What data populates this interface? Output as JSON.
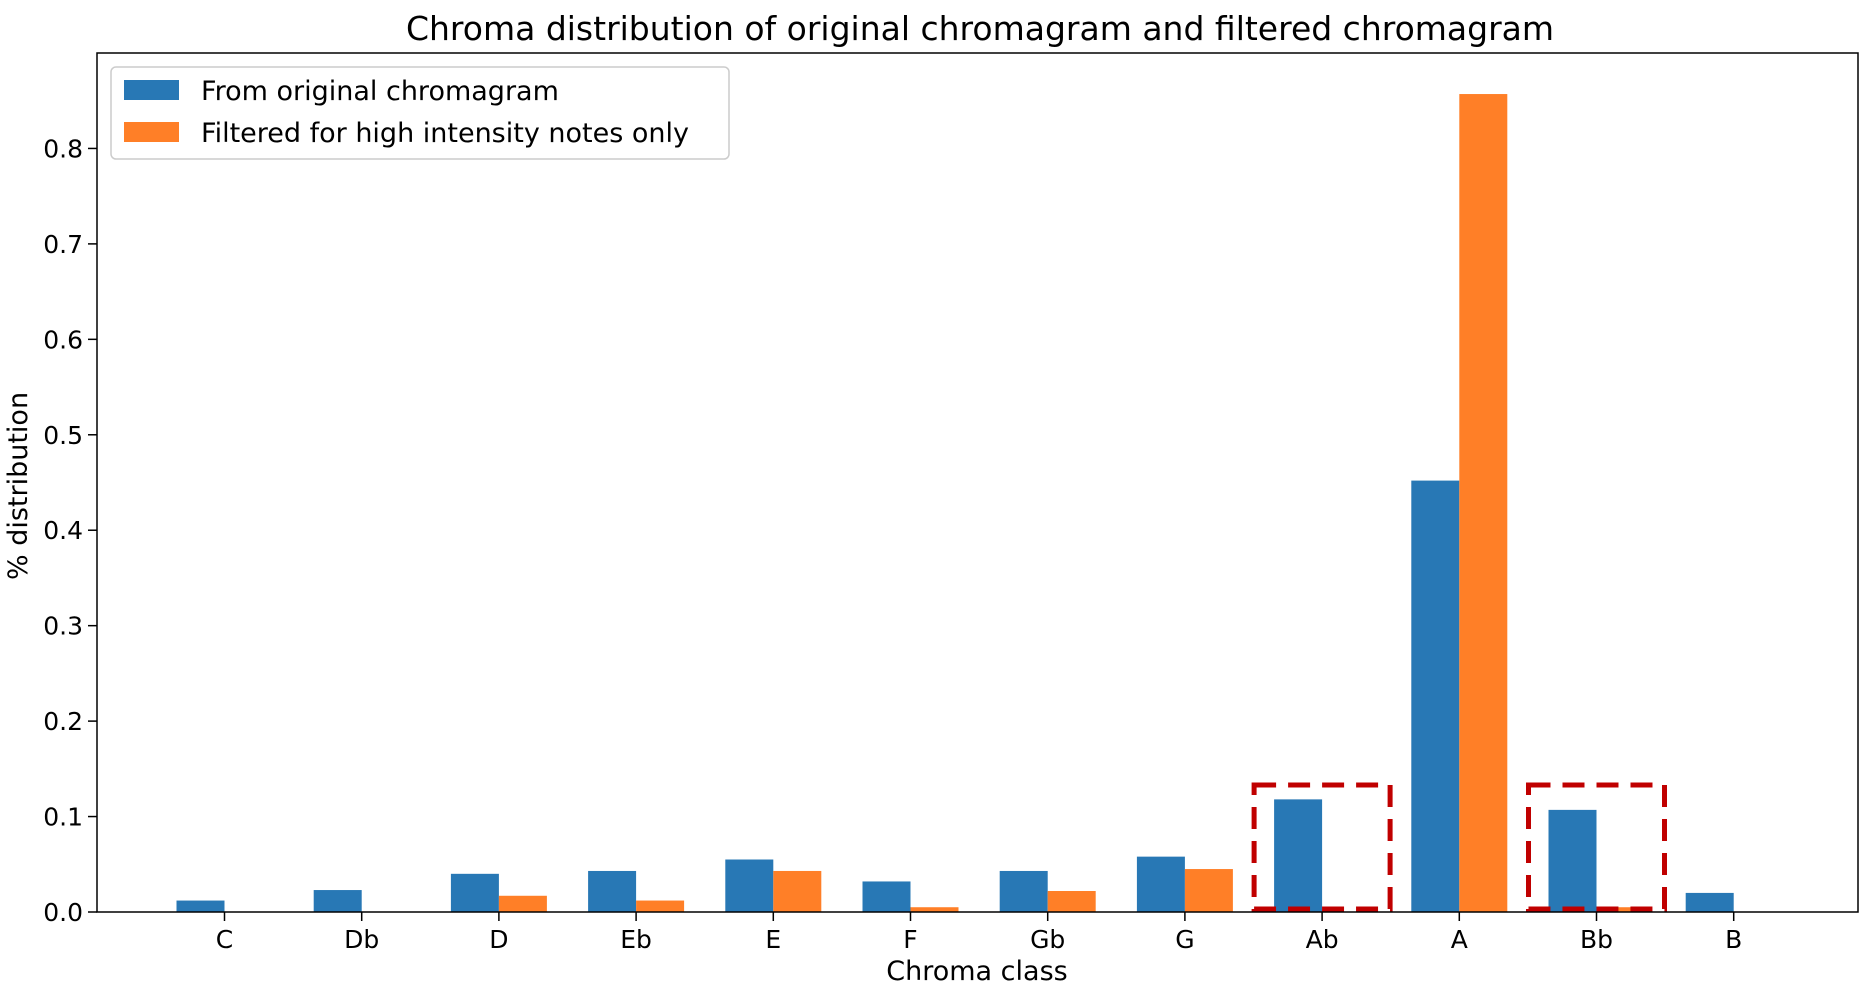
{
  "chart_data": {
    "type": "bar",
    "title": "Chroma distribution of original chromagram and filtered chromagram",
    "xlabel": "Chroma class",
    "ylabel": "% distribution",
    "categories": [
      "C",
      "Db",
      "D",
      "Eb",
      "E",
      "F",
      "Gb",
      "G",
      "Ab",
      "A",
      "Bb",
      "B"
    ],
    "series": [
      {
        "name": "From original chromagram",
        "color": "#2878b5",
        "values": [
          0.012,
          0.023,
          0.04,
          0.043,
          0.055,
          0.032,
          0.043,
          0.058,
          0.118,
          0.452,
          0.107,
          0.02
        ]
      },
      {
        "name": "Filtered for high intensity notes only",
        "color": "#ff7f27",
        "values": [
          0.0,
          0.0,
          0.017,
          0.012,
          0.043,
          0.005,
          0.022,
          0.045,
          0.0,
          0.857,
          0.005,
          0.0
        ]
      }
    ],
    "ylim": [
      0,
      0.9
    ],
    "yticks": [
      "0.0",
      "0.1",
      "0.2",
      "0.3",
      "0.4",
      "0.5",
      "0.6",
      "0.7",
      "0.8"
    ],
    "grid": false,
    "legend_position": "top-left",
    "annotations": [
      {
        "type": "dashed-box",
        "color": "#c00000",
        "category": "Ab",
        "y_top": 0.133
      },
      {
        "type": "dashed-box",
        "color": "#c00000",
        "category": "Bb",
        "y_top": 0.133
      }
    ]
  }
}
